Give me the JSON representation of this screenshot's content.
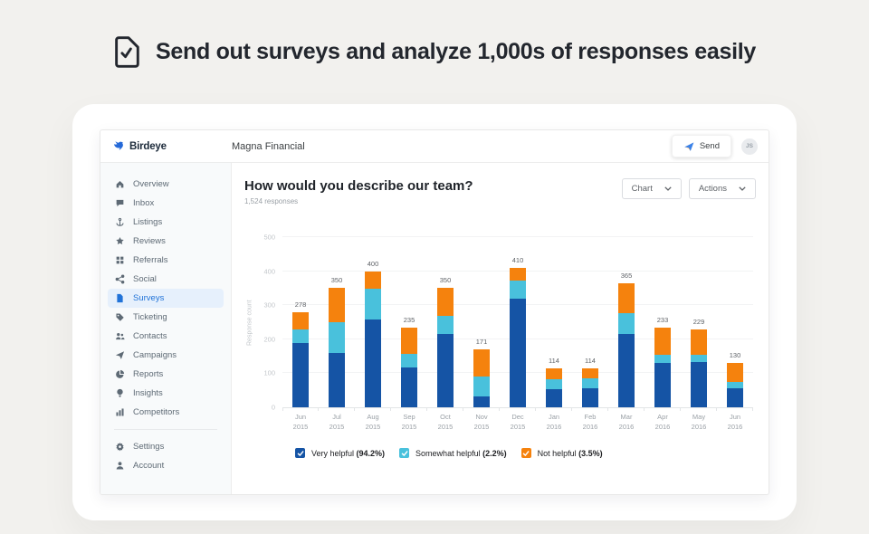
{
  "hero": {
    "title": "Send out surveys and analyze 1,000s of responses easily"
  },
  "topbar": {
    "brand": "Birdeye",
    "account_name": "Magna Financial",
    "send_label": "Send",
    "avatar_initials": "JS"
  },
  "sidebar": {
    "items": [
      {
        "label": "Overview",
        "icon": "home-icon",
        "selected": false
      },
      {
        "label": "Inbox",
        "icon": "chat-icon",
        "selected": false
      },
      {
        "label": "Listings",
        "icon": "anchor-icon",
        "selected": false
      },
      {
        "label": "Reviews",
        "icon": "star-icon",
        "selected": false
      },
      {
        "label": "Referrals",
        "icon": "grid-icon",
        "selected": false
      },
      {
        "label": "Social",
        "icon": "share-icon",
        "selected": false
      },
      {
        "label": "Surveys",
        "icon": "document-icon",
        "selected": true
      },
      {
        "label": "Ticketing",
        "icon": "tag-icon",
        "selected": false
      },
      {
        "label": "Contacts",
        "icon": "people-icon",
        "selected": false
      },
      {
        "label": "Campaigns",
        "icon": "paper-plane-icon",
        "selected": false
      },
      {
        "label": "Reports",
        "icon": "pie-chart-icon",
        "selected": false
      },
      {
        "label": "Insights",
        "icon": "lightbulb-icon",
        "selected": false
      },
      {
        "label": "Competitors",
        "icon": "bar-chart-icon",
        "selected": false
      }
    ],
    "footer_items": [
      {
        "label": "Settings",
        "icon": "gear-icon",
        "selected": false
      },
      {
        "label": "Account",
        "icon": "person-icon",
        "selected": false
      }
    ]
  },
  "main": {
    "question_title": "How would you describe our team?",
    "responses_label": "1,524 responses",
    "chart_button_label": "Chart",
    "actions_button_label": "Actions"
  },
  "chart_data": {
    "type": "bar",
    "stacked": true,
    "title": "How would you describe our team?",
    "xlabel": "",
    "ylabel": "Response count",
    "ylim": [
      0,
      500
    ],
    "yticks": [
      0,
      100,
      200,
      300,
      400,
      500
    ],
    "grid": true,
    "legend_position": "bottom",
    "categories": [
      "Jun 2015",
      "Jul 2015",
      "Aug 2015",
      "Sep 2015",
      "Oct 2015",
      "Nov 2015",
      "Dec 2015",
      "Jan 2016",
      "Feb 2016",
      "Mar 2016",
      "Apr 2016",
      "May 2016",
      "Jun 2016"
    ],
    "totals": [
      278,
      350,
      400,
      235,
      350,
      171,
      410,
      114,
      114,
      365,
      233,
      229,
      130
    ],
    "series": [
      {
        "name": "Very helpful",
        "pct": "94.2%",
        "color": "#1554a5",
        "values": [
          190,
          160,
          258,
          118,
          216,
          32,
          318,
          53,
          55,
          215,
          130,
          133,
          56
        ]
      },
      {
        "name": "Somewhat helpful",
        "pct": "2.2%",
        "color": "#49c1dc",
        "values": [
          40,
          90,
          90,
          40,
          54,
          59,
          55,
          30,
          30,
          62,
          25,
          22,
          19
        ]
      },
      {
        "name": "Not helpful",
        "pct": "3.5%",
        "color": "#f5820d",
        "values": [
          48,
          100,
          52,
          77,
          80,
          80,
          37,
          31,
          29,
          88,
          78,
          74,
          55
        ]
      }
    ]
  },
  "colors": {
    "accent_blue": "#2173d8",
    "bar_blue": "#1554a5",
    "bar_cyan": "#49c1dc",
    "bar_orange": "#f5820d",
    "page_bg": "#f2f1ee"
  }
}
